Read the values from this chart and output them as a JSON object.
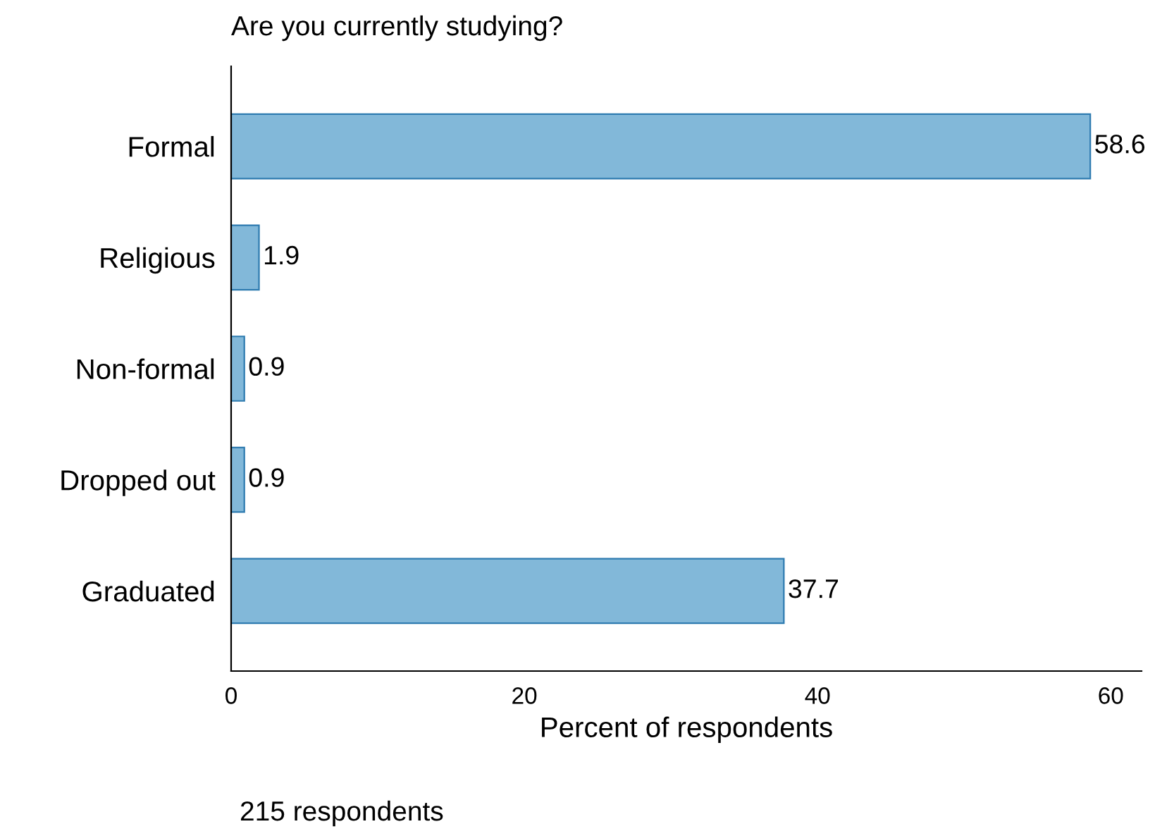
{
  "chart_data": {
    "type": "bar",
    "orientation": "horizontal",
    "title": "Are you currently studying?",
    "xlabel": "Percent of respondents",
    "categories": [
      "Formal",
      "Religious",
      "Non-formal",
      "Dropped out",
      "Graduated"
    ],
    "values": [
      58.6,
      1.9,
      0.9,
      0.9,
      37.7
    ],
    "color": "#82b8d9",
    "data_labels": true,
    "xlim": [
      0,
      62.1
    ],
    "xticks": [
      0,
      20,
      40,
      60
    ],
    "grid": false,
    "legend": false,
    "annotations": [
      "215 respondents"
    ]
  }
}
